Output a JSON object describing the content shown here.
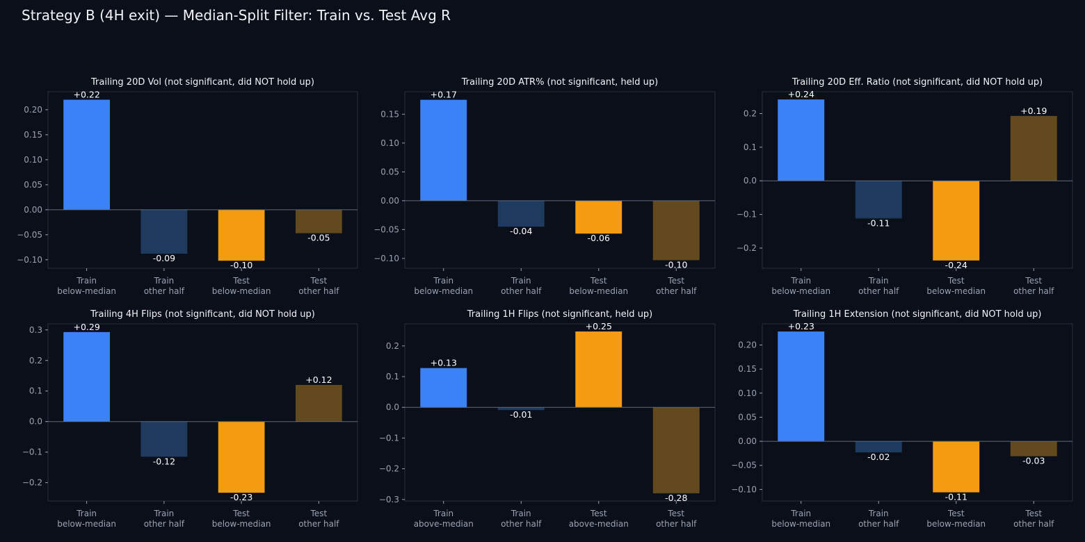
{
  "title": "Strategy B (4H exit) — Median-Split Filter: Train vs. Test Avg R",
  "colors": {
    "background": "#0b0f19",
    "axes_frame": "#263041",
    "zero_line": "#5f6b7e",
    "train_filter": "#3b82f6",
    "train_other": "#1e3a5f",
    "test_filter": "#f39c12",
    "test_other": "#624a1e",
    "text": "#f2f4f8",
    "tick_text": "#9aa3b2"
  },
  "chart_data": [
    {
      "type": "bar",
      "title": "Trailing 20D Vol (not significant, did NOT hold up)",
      "categories": [
        "Train\nbelow-median",
        "Train\nother half",
        "Test\nbelow-median",
        "Test\nother half"
      ],
      "values": [
        0.22,
        -0.088,
        -0.102,
        -0.047
      ],
      "value_labels": [
        "+0.22",
        "-0.09",
        "-0.10",
        "-0.05"
      ],
      "ylim": [
        -0.117,
        0.236
      ],
      "yticks": [
        -0.1,
        -0.05,
        0.0,
        0.05,
        0.1,
        0.15,
        0.2
      ],
      "ytick_labels": [
        "−0.10",
        "−0.05",
        "0.00",
        "0.05",
        "0.10",
        "0.15",
        "0.20"
      ]
    },
    {
      "type": "bar",
      "title": "Trailing 20D ATR% (not significant, held up)",
      "categories": [
        "Train\nbelow-median",
        "Train\nother half",
        "Test\nbelow-median",
        "Test\nother half"
      ],
      "values": [
        0.175,
        -0.045,
        -0.057,
        -0.103
      ],
      "value_labels": [
        "+0.17",
        "-0.04",
        "-0.06",
        "-0.10"
      ],
      "ylim": [
        -0.117,
        0.189
      ],
      "yticks": [
        -0.1,
        -0.05,
        0.0,
        0.05,
        0.1,
        0.15
      ],
      "ytick_labels": [
        "−0.10",
        "−0.05",
        "0.00",
        "0.05",
        "0.10",
        "0.15"
      ]
    },
    {
      "type": "bar",
      "title": "Trailing 20D Eff. Ratio (not significant, did NOT hold up)",
      "categories": [
        "Train\nbelow-median",
        "Train\nother half",
        "Test\nbelow-median",
        "Test\nother half"
      ],
      "values": [
        0.242,
        -0.112,
        -0.237,
        0.193
      ],
      "value_labels": [
        "+0.24",
        "-0.11",
        "-0.24",
        "+0.19"
      ],
      "ylim": [
        -0.26,
        0.265
      ],
      "yticks": [
        -0.2,
        -0.1,
        0.0,
        0.1,
        0.2
      ],
      "ytick_labels": [
        "−0.2",
        "−0.1",
        "0.0",
        "0.1",
        "0.2"
      ]
    },
    {
      "type": "bar",
      "title": "Trailing 4H Flips (not significant, did NOT hold up)",
      "categories": [
        "Train\nbelow-median",
        "Train\nother half",
        "Test\nbelow-median",
        "Test\nother half"
      ],
      "values": [
        0.293,
        -0.115,
        -0.233,
        0.12
      ],
      "value_labels": [
        "+0.29",
        "-0.12",
        "-0.23",
        "+0.12"
      ],
      "ylim": [
        -0.26,
        0.32
      ],
      "yticks": [
        -0.2,
        -0.1,
        0.0,
        0.1,
        0.2,
        0.3
      ],
      "ytick_labels": [
        "−0.2",
        "−0.1",
        "0.0",
        "0.1",
        "0.2",
        "0.3"
      ]
    },
    {
      "type": "bar",
      "title": "Trailing 1H Flips (not significant, held up)",
      "categories": [
        "Train\nabove-median",
        "Train\nother half",
        "Test\nabove-median",
        "Test\nother half"
      ],
      "values": [
        0.128,
        -0.009,
        0.247,
        -0.28
      ],
      "value_labels": [
        "+0.13",
        "-0.01",
        "+0.25",
        "-0.28"
      ],
      "ylim": [
        -0.305,
        0.272
      ],
      "yticks": [
        -0.3,
        -0.2,
        -0.1,
        0.0,
        0.1,
        0.2
      ],
      "ytick_labels": [
        "−0.3",
        "−0.2",
        "−0.1",
        "0.0",
        "0.1",
        "0.2"
      ]
    },
    {
      "type": "bar",
      "title": "Trailing 1H Extension (not significant, did NOT hold up)",
      "categories": [
        "Train\nbelow-median",
        "Train\nother half",
        "Test\nbelow-median",
        "Test\nother half"
      ],
      "values": [
        0.228,
        -0.023,
        -0.106,
        -0.031
      ],
      "value_labels": [
        "+0.23",
        "-0.02",
        "-0.11",
        "-0.03"
      ],
      "ylim": [
        -0.124,
        0.244
      ],
      "yticks": [
        -0.1,
        -0.05,
        0.0,
        0.05,
        0.1,
        0.15,
        0.2
      ],
      "ytick_labels": [
        "−0.10",
        "−0.05",
        "0.00",
        "0.05",
        "0.10",
        "0.15",
        "0.20"
      ]
    }
  ]
}
